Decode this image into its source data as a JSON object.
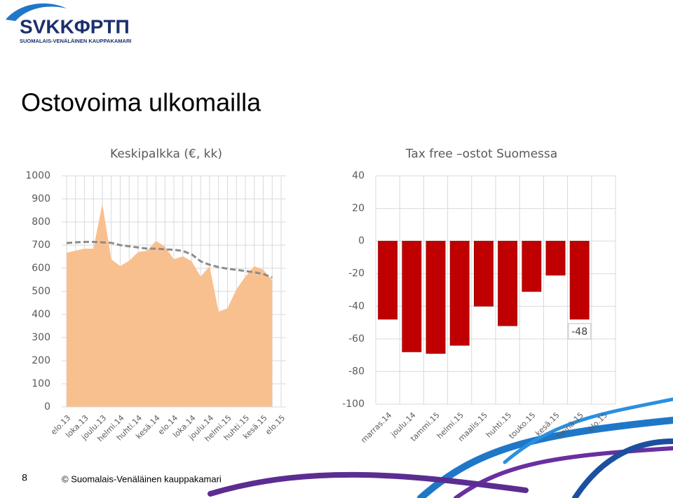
{
  "logo": {
    "name": "SVKKΦPTΠ",
    "subtitle": "SUOMALAIS-VENÄLÄINEN KAUPPAKAMARI"
  },
  "title": "Ostovoima ulkomailla",
  "footer": {
    "page": "8",
    "text": "© Suomalais-Venäläinen kauppakamari"
  },
  "chart_data": [
    {
      "type": "area",
      "title": "Keskipalkka (€, kk)",
      "categories": [
        "elo.13",
        null,
        "loka.13",
        null,
        "joulu.13",
        null,
        "helmi.14",
        null,
        "huhti.14",
        null,
        "kesä.14",
        null,
        "elo.14",
        null,
        "loka.14",
        null,
        "joulu.14",
        null,
        "helmi.15",
        null,
        "huhti.15",
        null,
        "kesä.15",
        null,
        "elo.15"
      ],
      "series": [
        {
          "type": "area",
          "color": "#f9c08f",
          "values": [
            667,
            676,
            685,
            685,
            879,
            639,
            609,
            633,
            670,
            676,
            718,
            694,
            639,
            652,
            630,
            564,
            609,
            412,
            427,
            509,
            564,
            609,
            594,
            548,
            null
          ]
        },
        {
          "type": "line",
          "dashed": true,
          "color": "#8c8c8c",
          "values": [
            709,
            712,
            714,
            714,
            712,
            710,
            700,
            695,
            690,
            685,
            685,
            682,
            680,
            675,
            660,
            630,
            615,
            605,
            598,
            593,
            588,
            583,
            575,
            560,
            null
          ]
        }
      ],
      "ylim": [
        0,
        1000
      ],
      "yticks": [
        0,
        100,
        200,
        300,
        400,
        500,
        600,
        700,
        800,
        900,
        1000
      ],
      "grid": true
    },
    {
      "type": "bar",
      "title": "Tax free –ostot Suomessa",
      "categories": [
        "marras.14",
        "joulu.14",
        "tammi.15",
        "helmi.15",
        "maalis.15",
        "huhti.15",
        "touko.15",
        "kesä.15",
        "heinä.15",
        "elo.15"
      ],
      "series": [
        {
          "color": "#c00000",
          "values": [
            -48,
            -68,
            -69,
            -64,
            -40,
            -52,
            -31,
            -21,
            -48,
            null
          ]
        }
      ],
      "ylim": [
        -100,
        40
      ],
      "yticks": [
        -100,
        -80,
        -60,
        -40,
        -20,
        0,
        20,
        40
      ],
      "grid": true
    }
  ]
}
